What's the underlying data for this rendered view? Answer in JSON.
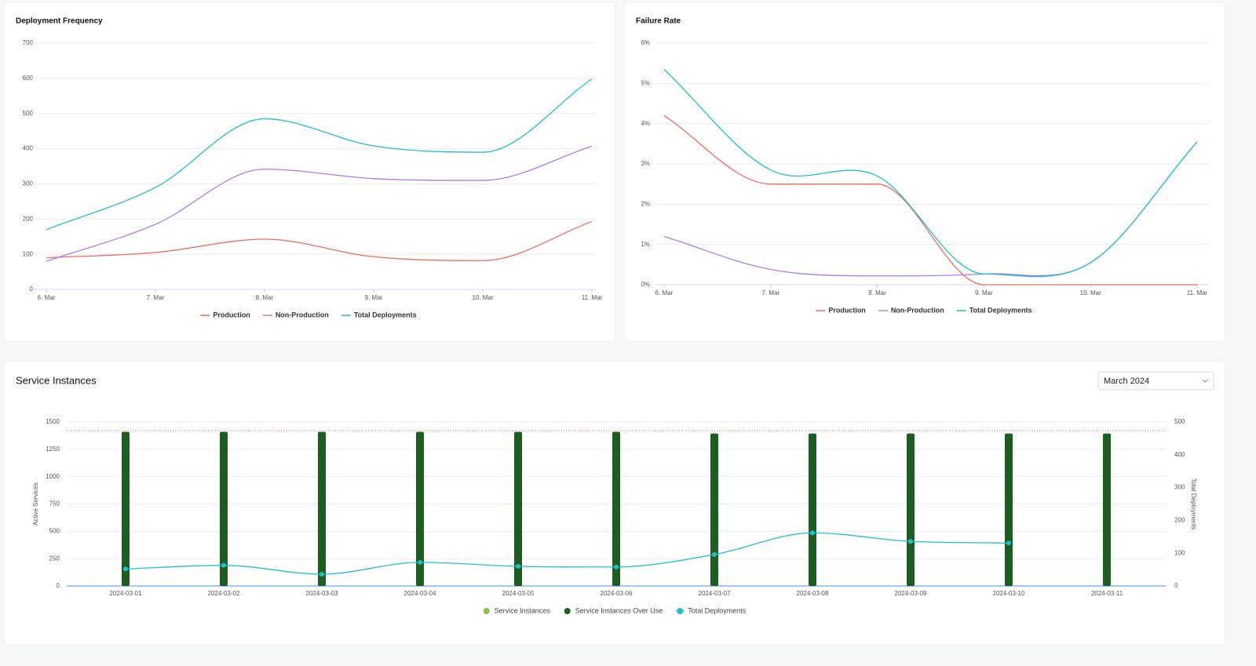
{
  "chart_data": [
    {
      "type": "line",
      "title": "Deployment Frequency",
      "categories": [
        "6. Mar",
        "7. Mar",
        "8. Mar",
        "9. Mar",
        "10. Mar",
        "11. Mar"
      ],
      "series": [
        {
          "name": "Production",
          "color": "#ef6b5b",
          "values": [
            90,
            105,
            143,
            93,
            82,
            193
          ]
        },
        {
          "name": "Non-Production",
          "color": "#a57ff0",
          "values": [
            80,
            185,
            342,
            315,
            310,
            407
          ]
        },
        {
          "name": "Total Deployments",
          "color": "#21c0c8",
          "values": [
            170,
            290,
            485,
            408,
            390,
            598
          ]
        }
      ],
      "ylim": [
        0,
        700
      ],
      "yticks": [
        0,
        100,
        200,
        300,
        400,
        500,
        600,
        700
      ],
      "grid": true,
      "legend": "bottom"
    },
    {
      "type": "line",
      "title": "Failure Rate",
      "categories": [
        "6. Mar",
        "7. Mar",
        "8. Mar",
        "9. Mar",
        "10. Mar",
        "11. Mar"
      ],
      "series": [
        {
          "name": "Production",
          "color": "#ef6b5b",
          "values": [
            4.2,
            2.5,
            2.5,
            0,
            0,
            0
          ]
        },
        {
          "name": "Non-Production",
          "color": "#a57ff0",
          "values": [
            1.2,
            0.38,
            0.22,
            0.27,
            0.55,
            3.55
          ]
        },
        {
          "name": "Total Deployments",
          "color": "#21c0c8",
          "values": [
            5.35,
            2.85,
            2.7,
            0.27,
            0.55,
            3.55
          ]
        }
      ],
      "ylim": [
        0,
        6
      ],
      "yticks": [
        {
          "value": 0,
          "label": "0%"
        },
        {
          "value": 1,
          "label": "1%"
        },
        {
          "value": 2,
          "label": "2%"
        },
        {
          "value": 3,
          "label": "3%"
        },
        {
          "value": 4,
          "label": "4%"
        },
        {
          "value": 5,
          "label": "5%"
        },
        {
          "value": 6,
          "label": "6%"
        }
      ],
      "grid": true,
      "legend": "bottom"
    },
    {
      "type": "combo",
      "title": "Service Instances",
      "categories": [
        "2024-03-01",
        "2024-03-02",
        "2024-03-03",
        "2024-03-04",
        "2024-03-05",
        "2024-03-06",
        "2024-03-07",
        "2024-03-08",
        "2024-03-09",
        "2024-03-10",
        "2024-03-11"
      ],
      "series": [
        {
          "name": "Service Instances",
          "color": "#8bc34a",
          "type": "bar",
          "values": [
            null,
            null,
            null,
            null,
            null,
            null,
            null,
            null,
            null,
            null,
            null
          ]
        },
        {
          "name": "Service Instances Over Use",
          "color": "#1b5e20",
          "type": "bar",
          "values": [
            1410,
            1410,
            1410,
            1410,
            1410,
            1410,
            1395,
            1395,
            1395,
            1395,
            1395
          ]
        },
        {
          "name": "Total Deployments",
          "color": "#21c0c8",
          "type": "line",
          "axis": "y2",
          "values": [
            52,
            63,
            36,
            72,
            60,
            58,
            96,
            162,
            136,
            131,
            null
          ]
        }
      ],
      "ylabel": "Active Services",
      "y2label": "Total Deployments",
      "ylim": [
        0,
        1500
      ],
      "yticks": [
        0,
        250,
        500,
        750,
        1000,
        1250,
        1500
      ],
      "y2lim": [
        0,
        500
      ],
      "y2ticks": [
        0,
        100,
        200,
        300,
        400,
        500
      ],
      "reference_line": {
        "value": 1420,
        "color": "#e57373"
      },
      "grid": true,
      "legend": "bottom"
    }
  ],
  "month_select": "March 2024"
}
